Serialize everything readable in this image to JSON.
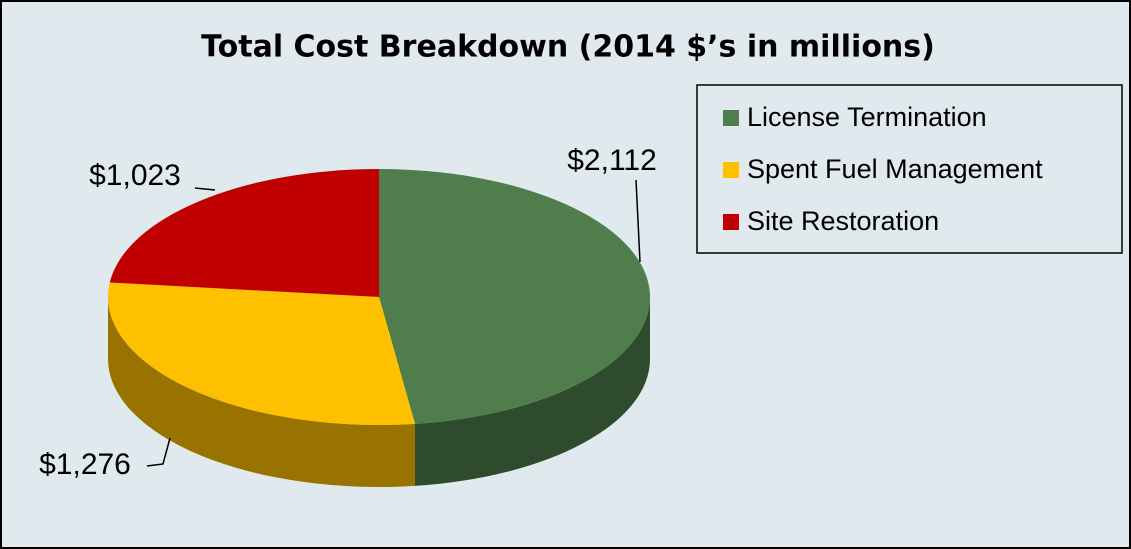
{
  "chart_data": {
    "type": "pie",
    "title": "Total Cost Breakdown (2014 $’s in millions)",
    "categories": [
      "License Termination",
      "Spent Fuel Management",
      "Site Restoration"
    ],
    "values": [
      2112,
      1276,
      1023
    ],
    "value_labels": [
      "$2,112",
      "$1,276",
      "$1,023"
    ],
    "colors": [
      "#4f7d4c",
      "#ffc000",
      "#c00000"
    ],
    "legend": "top-right"
  }
}
